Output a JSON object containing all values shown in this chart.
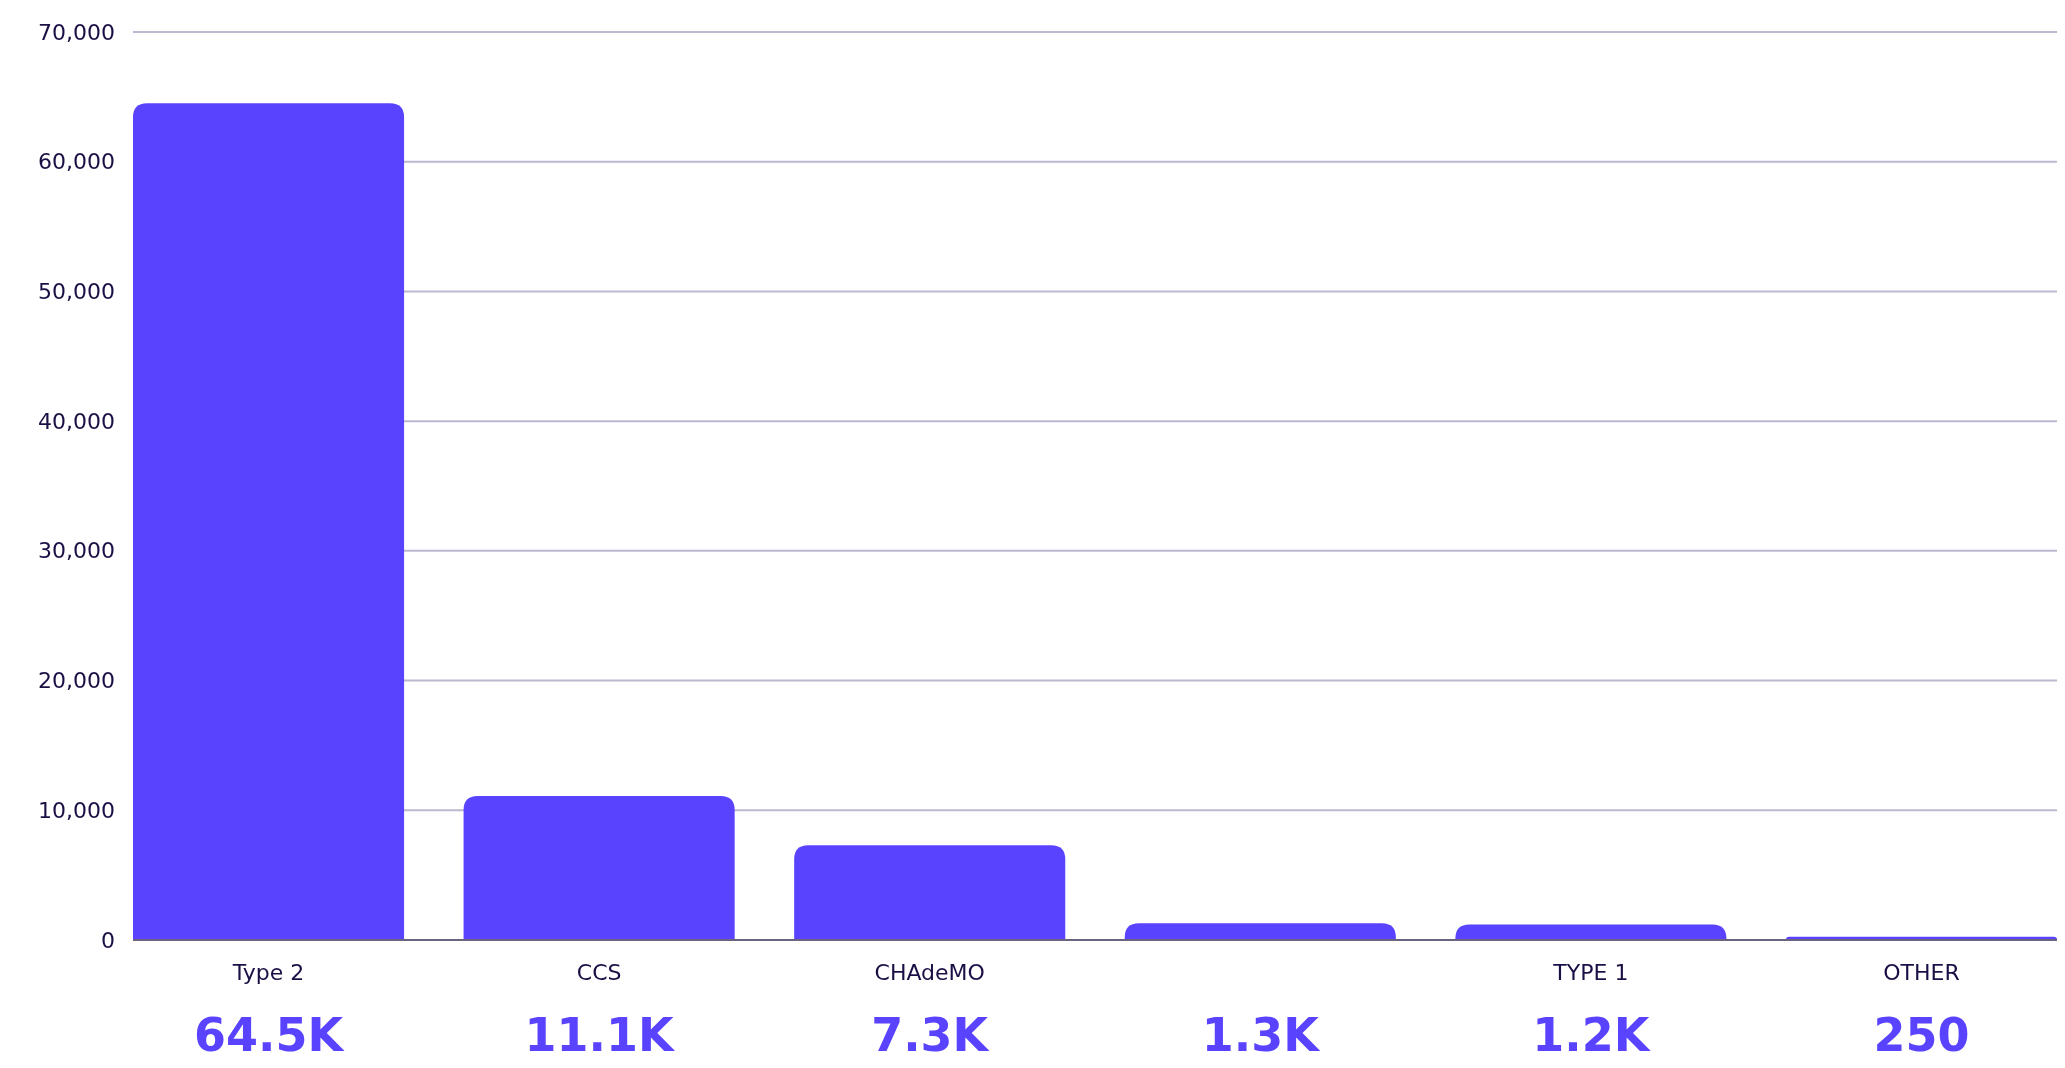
{
  "chart_data": {
    "type": "bar",
    "categories": [
      "Type 2",
      "CCS",
      "CHAdeMO",
      null,
      "TYPE 1",
      "OTHER"
    ],
    "values": [
      64500,
      11100,
      7300,
      1300,
      1200,
      250
    ],
    "value_labels": [
      "64.5K",
      "11.1K",
      "7.3K",
      "1.3K",
      "1.2K",
      "250"
    ],
    "color": "#5a43ff",
    "ylim": [
      0,
      70000
    ],
    "yticks": [
      {
        "value": 0,
        "label": "0"
      },
      {
        "value": 10000,
        "label": "10,000"
      },
      {
        "value": 20000,
        "label": "20,000"
      },
      {
        "value": 30000,
        "label": "30,000"
      },
      {
        "value": 40000,
        "label": "40,000"
      },
      {
        "value": 50000,
        "label": "50,000"
      },
      {
        "value": 60000,
        "label": "60,000"
      },
      {
        "value": 70000,
        "label": "70,000"
      }
    ],
    "grid": "y"
  }
}
